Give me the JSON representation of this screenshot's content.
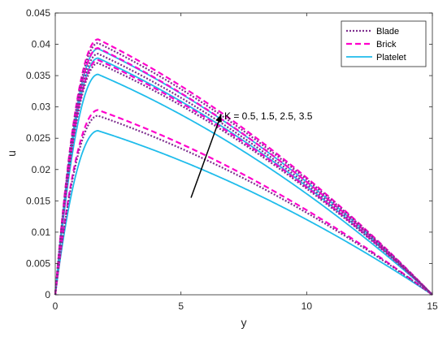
{
  "chart_data": {
    "type": "line",
    "xlabel": "y",
    "ylabel": "u",
    "xlim": [
      0,
      15
    ],
    "ylim": [
      0,
      0.045
    ],
    "x_ticks": [
      0,
      5,
      10,
      15
    ],
    "y_ticks": [
      0,
      0.005,
      0.01,
      0.015,
      0.02,
      0.025,
      0.03,
      0.035,
      0.04,
      0.045
    ],
    "y_tick_labels": [
      "0",
      "0.005",
      "0.01",
      "0.015",
      "0.02",
      "0.025",
      "0.03",
      "0.035",
      "0.04",
      "0.045"
    ],
    "grid": false,
    "legend_position": "top-right",
    "legend": [
      {
        "name": "Blade",
        "color": "#7E2F8E",
        "style": "dotted"
      },
      {
        "name": "Brick",
        "color": "#FF00CC",
        "style": "dashed"
      },
      {
        "name": "Platelet",
        "color": "#1FBCEB",
        "style": "solid"
      }
    ],
    "annotation": {
      "text": "K = 0.5, 1.5, 2.5, 3.5",
      "arrow_from": [
        5.4,
        0.0155
      ],
      "arrow_to": [
        6.6,
        0.0288
      ]
    },
    "peak_x": 1.7,
    "series": [
      {
        "name": "Blade",
        "K": 0.5,
        "peak": 0.0286,
        "color": "#7E2F8E",
        "style": "dotted"
      },
      {
        "name": "Blade",
        "K": 1.5,
        "peak": 0.037,
        "color": "#7E2F8E",
        "style": "dotted"
      },
      {
        "name": "Blade",
        "K": 2.5,
        "peak": 0.0385,
        "color": "#7E2F8E",
        "style": "dotted"
      },
      {
        "name": "Blade",
        "K": 3.5,
        "peak": 0.0402,
        "color": "#7E2F8E",
        "style": "dotted"
      },
      {
        "name": "Brick",
        "K": 0.5,
        "peak": 0.0295,
        "color": "#FF00CC",
        "style": "dashed"
      },
      {
        "name": "Brick",
        "K": 1.5,
        "peak": 0.0375,
        "color": "#FF00CC",
        "style": "dashed"
      },
      {
        "name": "Brick",
        "K": 2.5,
        "peak": 0.0394,
        "color": "#FF00CC",
        "style": "dashed"
      },
      {
        "name": "Brick",
        "K": 3.5,
        "peak": 0.0408,
        "color": "#FF00CC",
        "style": "dashed"
      },
      {
        "name": "Platelet",
        "K": 0.5,
        "peak": 0.0262,
        "color": "#1FBCEB",
        "style": "solid"
      },
      {
        "name": "Platelet",
        "K": 1.5,
        "peak": 0.0352,
        "color": "#1FBCEB",
        "style": "solid"
      },
      {
        "name": "Platelet",
        "K": 2.5,
        "peak": 0.0378,
        "color": "#1FBCEB",
        "style": "solid"
      },
      {
        "name": "Platelet",
        "K": 3.5,
        "peak": 0.0393,
        "color": "#1FBCEB",
        "style": "solid"
      }
    ]
  }
}
